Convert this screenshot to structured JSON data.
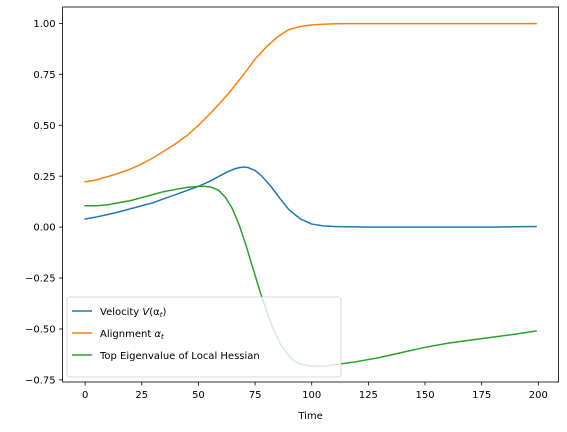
{
  "chart_data": {
    "type": "line",
    "title": "",
    "xlabel": "Time",
    "ylabel": "",
    "xlim": [
      -9.95,
      208.95
    ],
    "ylim": [
      -0.7603,
      1.0805
    ],
    "xticks": [
      0,
      25,
      50,
      75,
      100,
      125,
      150,
      175,
      200
    ],
    "xtick_labels": [
      "0",
      "25",
      "50",
      "75",
      "100",
      "125",
      "150",
      "175",
      "200"
    ],
    "yticks": [
      -0.75,
      -0.5,
      -0.25,
      0.0,
      0.25,
      0.5,
      0.75,
      1.0
    ],
    "ytick_labels": [
      "−0.75",
      "−0.50",
      "−0.25",
      "0.00",
      "0.25",
      "0.50",
      "0.75",
      "1.00"
    ],
    "grid": false,
    "legend_position": "lower-left",
    "series": [
      {
        "name": "Velocity V(α_t)",
        "legend_main": "Velocity ",
        "legend_sym": "V",
        "legend_rest": "(α",
        "legend_sub": "t",
        "legend_close": ")",
        "color": "#1f77b4",
        "x": [
          0,
          5,
          10,
          15,
          20,
          25,
          30,
          35,
          40,
          45,
          50,
          55,
          60,
          63,
          66,
          68,
          70,
          72,
          75,
          78,
          82,
          86,
          90,
          95,
          100,
          105,
          110,
          115,
          120,
          125,
          130,
          140,
          150,
          160,
          170,
          180,
          190,
          199
        ],
        "y": [
          0.04,
          0.05,
          0.062,
          0.075,
          0.09,
          0.105,
          0.12,
          0.14,
          0.16,
          0.18,
          0.2,
          0.225,
          0.255,
          0.272,
          0.286,
          0.292,
          0.295,
          0.292,
          0.278,
          0.25,
          0.2,
          0.14,
          0.085,
          0.04,
          0.015,
          0.006,
          0.003,
          0.002,
          0.001,
          0.0,
          0.0,
          0.0,
          0.0,
          0.0,
          0.0,
          0.0,
          0.002,
          0.003
        ]
      },
      {
        "name": "Alignment α_t",
        "legend_main": "Alignment ",
        "legend_sym": "α",
        "legend_rest": "",
        "legend_sub": "t",
        "legend_close": "",
        "color": "#ff7f0e",
        "x": [
          0,
          5,
          10,
          15,
          20,
          25,
          30,
          35,
          40,
          45,
          50,
          55,
          60,
          65,
          70,
          75,
          80,
          85,
          90,
          95,
          100,
          105,
          110,
          115,
          120,
          130,
          140,
          150,
          160,
          170,
          180,
          190,
          199
        ],
        "y": [
          0.222,
          0.232,
          0.248,
          0.265,
          0.285,
          0.31,
          0.34,
          0.375,
          0.41,
          0.45,
          0.5,
          0.555,
          0.615,
          0.68,
          0.75,
          0.825,
          0.885,
          0.935,
          0.97,
          0.985,
          0.993,
          0.996,
          0.998,
          0.999,
          0.999,
          0.999,
          0.999,
          0.999,
          0.999,
          0.999,
          0.999,
          0.999,
          0.999
        ]
      },
      {
        "name": "Top Eigenvalue of Local Hessian",
        "legend_main": "Top Eigenvalue of Local Hessian",
        "legend_sym": "",
        "legend_rest": "",
        "legend_sub": "",
        "legend_close": "",
        "color": "#2ca02c",
        "x": [
          0,
          5,
          10,
          15,
          20,
          25,
          30,
          35,
          40,
          45,
          50,
          53,
          56,
          59,
          62,
          65,
          68,
          71,
          74,
          77,
          80,
          83,
          86,
          89,
          92,
          95,
          98,
          101,
          105,
          110,
          115,
          120,
          130,
          140,
          150,
          160,
          170,
          180,
          190,
          199
        ],
        "y": [
          0.105,
          0.105,
          0.11,
          0.12,
          0.13,
          0.145,
          0.16,
          0.175,
          0.185,
          0.195,
          0.2,
          0.2,
          0.195,
          0.18,
          0.145,
          0.09,
          0.01,
          -0.09,
          -0.2,
          -0.31,
          -0.41,
          -0.5,
          -0.57,
          -0.62,
          -0.655,
          -0.672,
          -0.68,
          -0.683,
          -0.682,
          -0.675,
          -0.668,
          -0.66,
          -0.64,
          -0.615,
          -0.59,
          -0.57,
          -0.555,
          -0.54,
          -0.525,
          -0.51
        ]
      }
    ]
  }
}
